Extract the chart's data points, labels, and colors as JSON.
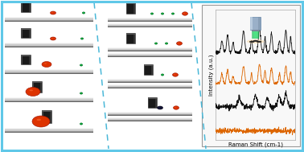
{
  "border_color": "#60c8e8",
  "background": "#ffffff",
  "raman_xlabel": "Raman Shift (cm-1)",
  "raman_ylabel": "Intensity (a.u.)",
  "dashed_line_color": "#50b8d8",
  "orange_color": "#cc3300",
  "green_color": "#00aa33",
  "transducer_dark": "#1a1a1a",
  "transducer_mid": "#3a3a3a",
  "surface_dark": "#888888",
  "surface_mid": "#bbbbbb",
  "surface_light": "#e0e0e0",
  "surface_top": "#f0f0f0",
  "raman_line1_color": "#111111",
  "raman_line2_color": "#dd6600",
  "raman_line3_color": "#111111",
  "raman_line4_color": "#dd6600",
  "panel_border": "#999999",
  "raman_bg": "#f8f8f8"
}
